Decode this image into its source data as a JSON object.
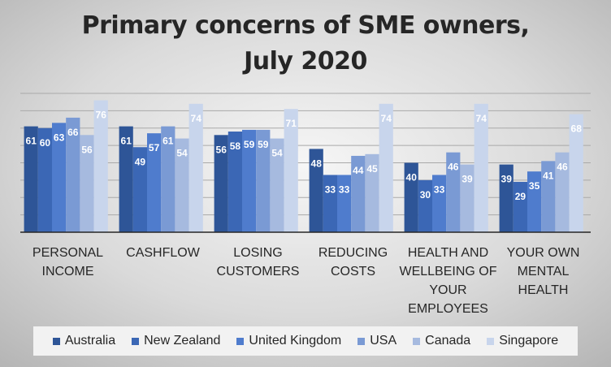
{
  "chart_data": {
    "type": "bar",
    "title_lines": [
      "Primary concerns of SME owners,",
      "July 2020"
    ],
    "categories": [
      [
        "PERSONAL",
        "INCOME"
      ],
      [
        "CASHFLOW"
      ],
      [
        "LOSING",
        "CUSTOMERS"
      ],
      [
        "REDUCING",
        "COSTS"
      ],
      [
        "HEALTH AND",
        "WELLBEING OF",
        "YOUR",
        "EMPLOYEES"
      ],
      [
        "YOUR OWN",
        "MENTAL",
        "HEALTH"
      ]
    ],
    "series": [
      {
        "name": "Australia",
        "color": "#2e5597",
        "values": [
          61,
          61,
          56,
          48,
          40,
          39
        ]
      },
      {
        "name": "New Zealand",
        "color": "#3b67b5",
        "values": [
          60,
          49,
          58,
          33,
          30,
          29
        ]
      },
      {
        "name": "United Kingdom",
        "color": "#4f7ccd",
        "values": [
          63,
          57,
          59,
          33,
          33,
          35
        ]
      },
      {
        "name": "USA",
        "color": "#7a9ad4",
        "values": [
          66,
          61,
          59,
          44,
          46,
          41
        ]
      },
      {
        "name": "Canada",
        "color": "#a6badf",
        "values": [
          56,
          54,
          54,
          45,
          39,
          46
        ]
      },
      {
        "name": "Singapore",
        "color": "#c8d5ec",
        "values": [
          76,
          74,
          71,
          74,
          74,
          68
        ]
      }
    ],
    "ylim": [
      0,
      80
    ],
    "grid": true,
    "legend_position": "bottom"
  }
}
